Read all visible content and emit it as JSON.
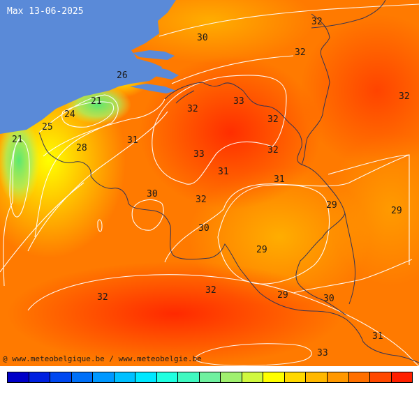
{
  "title": "Max 13-06-2025",
  "credit": "@ www.meteobelgique.be / www.meteobelgie.be",
  "colors": {
    "sea": "#5a8ad8",
    "base": "#ff7a00",
    "hot": "#ff3300",
    "warm": "#ffb000",
    "cool_yellow": "#ffff00",
    "cool_green": "#66ee66",
    "border": "#333355",
    "isoline": "#ffffff"
  },
  "legend_colors": [
    "#0000c8",
    "#0020e0",
    "#0048f0",
    "#0070f8",
    "#0098ff",
    "#00c0ff",
    "#00e8ff",
    "#20ffe0",
    "#40f8c0",
    "#70f0a0",
    "#a0f070",
    "#d0f840",
    "#ffff00",
    "#ffd800",
    "#ffb800",
    "#ff9800",
    "#ff7000",
    "#ff4800",
    "#ff2000"
  ],
  "temperature_labels": [
    {
      "value": "32"
    },
    {
      "value": "30"
    },
    {
      "value": "32"
    },
    {
      "value": "32"
    },
    {
      "value": "26"
    },
    {
      "value": "21"
    },
    {
      "value": "33"
    },
    {
      "value": "32"
    },
    {
      "value": "24"
    },
    {
      "value": "32"
    },
    {
      "value": "25"
    },
    {
      "value": "21"
    },
    {
      "value": "31"
    },
    {
      "value": "28"
    },
    {
      "value": "33"
    },
    {
      "value": "32"
    },
    {
      "value": "31"
    },
    {
      "value": "31"
    },
    {
      "value": "30"
    },
    {
      "value": "32"
    },
    {
      "value": "29"
    },
    {
      "value": "29"
    },
    {
      "value": "30"
    },
    {
      "value": "29"
    },
    {
      "value": "32"
    },
    {
      "value": "32"
    },
    {
      "value": "29"
    },
    {
      "value": "30"
    },
    {
      "value": "31"
    },
    {
      "value": "33"
    }
  ]
}
